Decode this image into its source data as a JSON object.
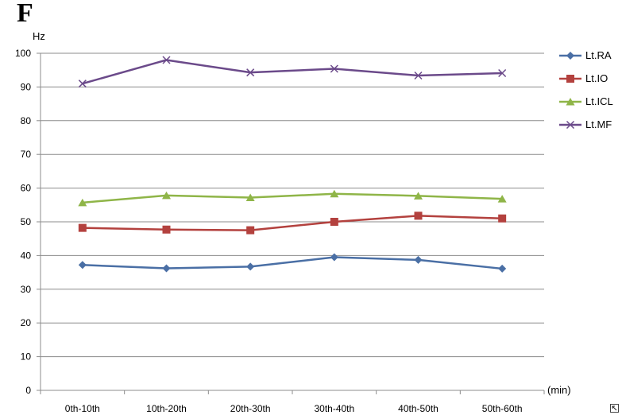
{
  "panel_label": "F",
  "chart_data": {
    "type": "line",
    "ylabel": "Hz",
    "xlabel": "(min)",
    "categories": [
      "0th-10th",
      "10th-20th",
      "20th-30th",
      "30th-40th",
      "40th-50th",
      "50th-60th"
    ],
    "ylim": [
      0,
      100
    ],
    "yticks": [
      0,
      10,
      20,
      30,
      40,
      50,
      60,
      70,
      80,
      90,
      100
    ],
    "grid": true,
    "legend_position": "right",
    "series": [
      {
        "name": "Lt.RA",
        "values": [
          37.2,
          36.2,
          36.7,
          39.5,
          38.7,
          36.1
        ],
        "color": "#4a6fa5",
        "marker": "diamond"
      },
      {
        "name": "Lt.IO",
        "values": [
          48.2,
          47.7,
          47.5,
          50.0,
          51.8,
          51.0
        ],
        "color": "#b3413e",
        "marker": "square"
      },
      {
        "name": "Lt.ICL",
        "values": [
          55.7,
          57.8,
          57.2,
          58.3,
          57.7,
          56.8
        ],
        "color": "#8fb548",
        "marker": "triangle"
      },
      {
        "name": "Lt.MF",
        "values": [
          91.0,
          98.0,
          94.3,
          95.4,
          93.4,
          94.1
        ],
        "color": "#6b4a8a",
        "marker": "x"
      }
    ]
  }
}
